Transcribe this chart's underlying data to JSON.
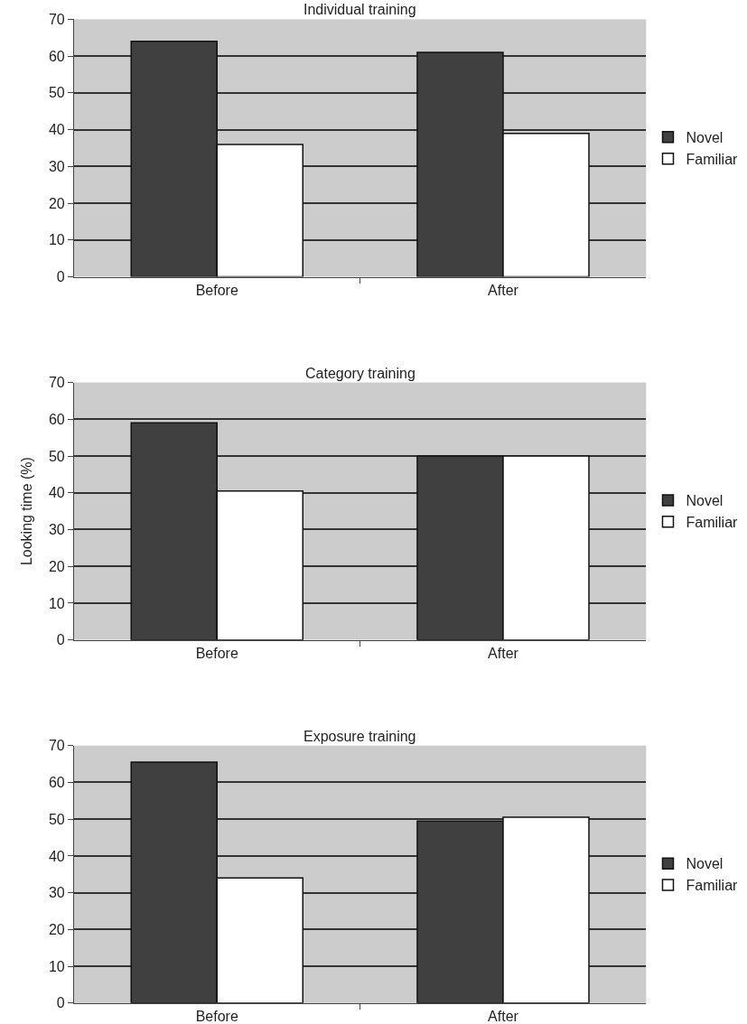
{
  "chart_data": [
    {
      "type": "bar",
      "title": "Individual training",
      "categories": [
        "Before",
        "After"
      ],
      "series": [
        {
          "name": "Novel",
          "color": "#404040",
          "values": [
            64,
            61
          ]
        },
        {
          "name": "Familiar",
          "color": "#ffffff",
          "values": [
            36,
            39
          ]
        }
      ],
      "ylim": [
        0,
        70
      ],
      "yticks": [
        0,
        10,
        20,
        30,
        40,
        50,
        60,
        70
      ],
      "grid": "y",
      "legend": "right"
    },
    {
      "type": "bar",
      "title": "Category training",
      "ylabel": "Looking time (%)",
      "categories": [
        "Before",
        "After"
      ],
      "series": [
        {
          "name": "Novel",
          "color": "#404040",
          "values": [
            59,
            50
          ]
        },
        {
          "name": "Familiar",
          "color": "#ffffff",
          "values": [
            40.5,
            50
          ]
        }
      ],
      "ylim": [
        0,
        70
      ],
      "yticks": [
        0,
        10,
        20,
        30,
        40,
        50,
        60,
        70
      ],
      "grid": "y",
      "legend": "right"
    },
    {
      "type": "bar",
      "title": "Exposure training",
      "categories": [
        "Before",
        "After"
      ],
      "series": [
        {
          "name": "Novel",
          "color": "#404040",
          "values": [
            65.5,
            49.5
          ]
        },
        {
          "name": "Familiar",
          "color": "#ffffff",
          "values": [
            34,
            50.5
          ]
        }
      ],
      "ylim": [
        0,
        70
      ],
      "yticks": [
        0,
        10,
        20,
        30,
        40,
        50,
        60,
        70
      ],
      "grid": "y",
      "legend": "right"
    }
  ]
}
